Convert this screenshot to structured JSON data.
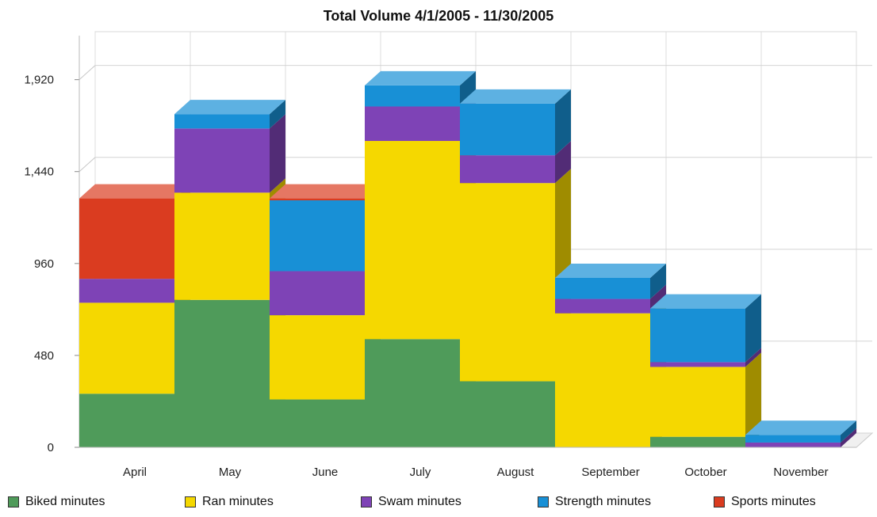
{
  "chart_data": {
    "type": "bar",
    "stacked": true,
    "style": "3d",
    "title": "Total Volume  4/1/2005 - 11/30/2005",
    "xlabel": "",
    "ylabel": "",
    "categories": [
      "April",
      "May",
      "June",
      "July",
      "August",
      "September",
      "October",
      "November"
    ],
    "ylim": [
      0,
      2150
    ],
    "yticks": [
      0,
      480,
      960,
      1440,
      1920
    ],
    "ytick_labels": [
      "0",
      "480",
      "960",
      "1,440",
      "1,920"
    ],
    "grid": true,
    "legend_position": "bottom",
    "series": [
      {
        "name": "Biked minutes",
        "color": "#4f9b5a",
        "values": [
          280,
          770,
          250,
          565,
          345,
          0,
          55,
          0
        ]
      },
      {
        "name": "Ran minutes",
        "color": "#f5d800",
        "values": [
          475,
          560,
          440,
          1035,
          1035,
          700,
          365,
          0
        ]
      },
      {
        "name": "Swam minutes",
        "color": "#7e43b6",
        "values": [
          125,
          335,
          230,
          180,
          145,
          75,
          25,
          25
        ]
      },
      {
        "name": "Strength minutes",
        "color": "#1890d6",
        "values": [
          0,
          75,
          370,
          110,
          270,
          110,
          280,
          40
        ]
      },
      {
        "name": "Sports minutes",
        "color": "#da3c20",
        "values": [
          420,
          0,
          10,
          0,
          0,
          0,
          0,
          0
        ]
      }
    ]
  }
}
